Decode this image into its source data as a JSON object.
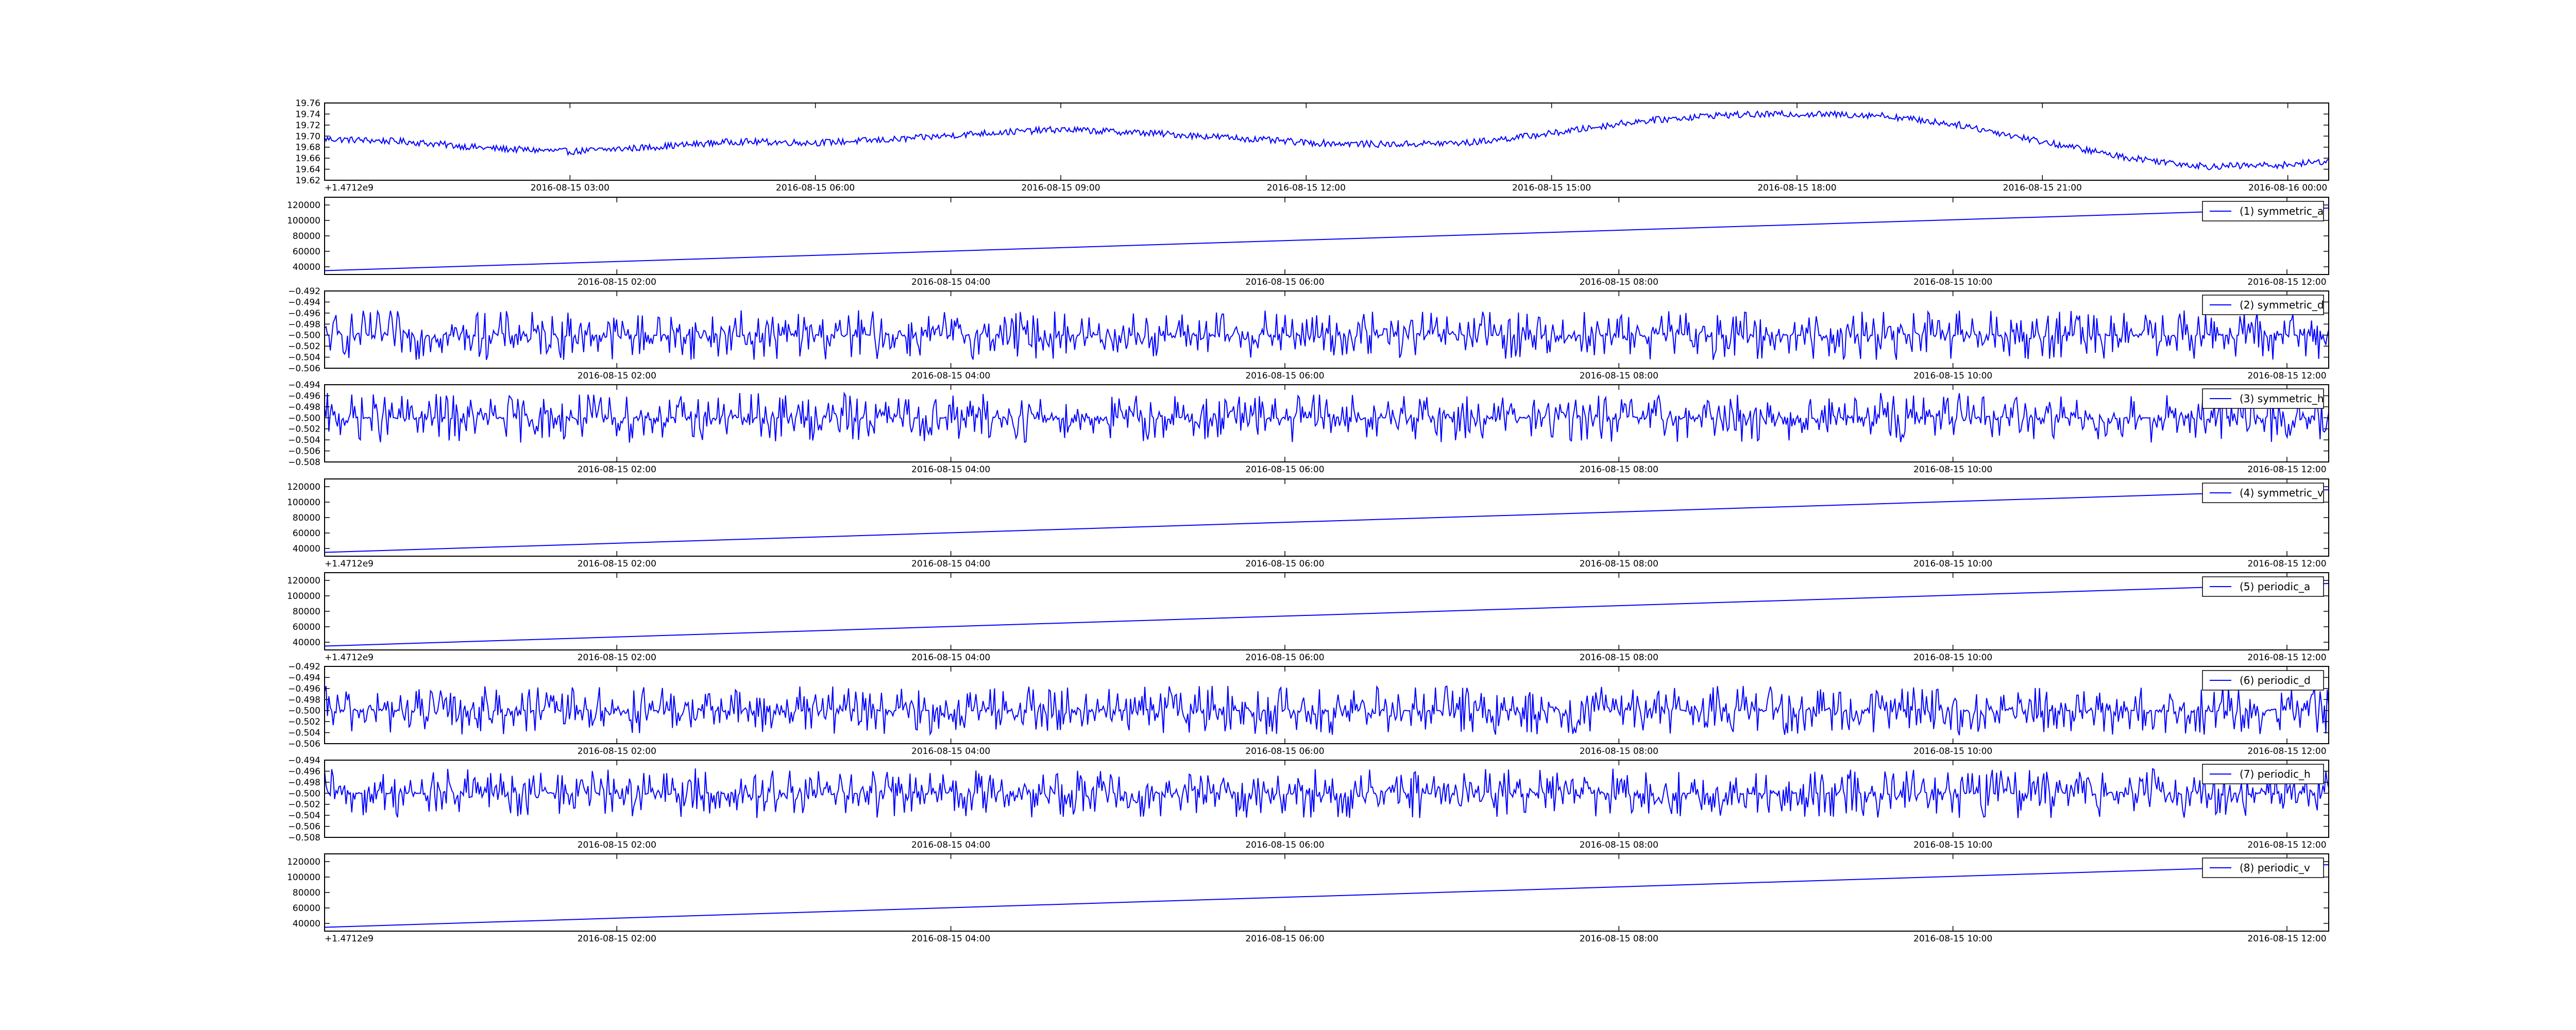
{
  "figure": {
    "background": "#ffffff",
    "line_color": "#0000ff"
  },
  "chart_data": [
    {
      "type": "line",
      "title": "",
      "offset_label": "+1.4712e9",
      "x_ticks": [
        "2016-08-15 03:00",
        "2016-08-15 06:00",
        "2016-08-15 09:00",
        "2016-08-15 12:00",
        "2016-08-15 15:00",
        "2016-08-15 18:00",
        "2016-08-15 21:00",
        "2016-08-16 00:00"
      ],
      "y_ticks": [
        "19.62",
        "19.64",
        "19.66",
        "19.68",
        "19.70",
        "19.72",
        "19.74",
        "19.76"
      ],
      "ylim": [
        19.62,
        19.76
      ],
      "grid": false,
      "series": [
        {
          "x": [
            "2016-08-15 00:00",
            "2016-08-15 01:00",
            "2016-08-15 02:00",
            "2016-08-15 03:00",
            "2016-08-15 04:00",
            "2016-08-15 05:00",
            "2016-08-15 06:00",
            "2016-08-15 07:00",
            "2016-08-15 08:00",
            "2016-08-15 09:00",
            "2016-08-15 10:00",
            "2016-08-15 11:00",
            "2016-08-15 12:00",
            "2016-08-15 13:00",
            "2016-08-15 14:00",
            "2016-08-15 15:00",
            "2016-08-15 16:00",
            "2016-08-15 17:00",
            "2016-08-15 18:00",
            "2016-08-15 19:00",
            "2016-08-15 20:00",
            "2016-08-15 21:00",
            "2016-08-15 22:00",
            "2016-08-15 23:00",
            "2016-08-16 00:00",
            "2016-08-16 00:30"
          ],
          "values": [
            19.695,
            19.69,
            19.678,
            19.672,
            19.68,
            19.69,
            19.688,
            19.694,
            19.705,
            19.712,
            19.706,
            19.698,
            19.688,
            19.685,
            19.688,
            19.705,
            19.726,
            19.738,
            19.74,
            19.738,
            19.72,
            19.69,
            19.662,
            19.645,
            19.648,
            19.655
          ],
          "noise": 0.006
        }
      ]
    },
    {
      "type": "line",
      "title": "",
      "offset_label": "",
      "legend": "(1) symmetric_a",
      "legend_position": "upper right",
      "x_ticks": [
        "2016-08-15 02:00",
        "2016-08-15 04:00",
        "2016-08-15 06:00",
        "2016-08-15 08:00",
        "2016-08-15 10:00",
        "2016-08-15 12:00"
      ],
      "y_ticks": [
        "40000",
        "60000",
        "80000",
        "100000",
        "120000"
      ],
      "ylim": [
        30000,
        130000
      ],
      "grid": false,
      "series": [
        {
          "name": "(1) symmetric_a",
          "x": [
            "2016-08-15 00:15",
            "2016-08-15 12:15"
          ],
          "values": [
            35000,
            116000
          ],
          "noise": 0
        }
      ]
    },
    {
      "type": "line",
      "title": "",
      "offset_label": "",
      "legend": "(2) symmetric_d",
      "legend_position": "upper right",
      "x_ticks": [
        "2016-08-15 02:00",
        "2016-08-15 04:00",
        "2016-08-15 06:00",
        "2016-08-15 08:00",
        "2016-08-15 10:00",
        "2016-08-15 12:00"
      ],
      "y_ticks": [
        "−0.506",
        "−0.504",
        "−0.502",
        "−0.500",
        "−0.498",
        "−0.496",
        "−0.494",
        "−0.492"
      ],
      "ylim": [
        -0.506,
        -0.492
      ],
      "grid": false,
      "series": [
        {
          "name": "(2) symmetric_d",
          "x": [
            "2016-08-15 00:15",
            "2016-08-15 12:15"
          ],
          "values": [
            -0.5,
            -0.5
          ],
          "noise": 0.0045
        }
      ]
    },
    {
      "type": "line",
      "title": "",
      "offset_label": "",
      "legend": "(3) symmetric_h",
      "legend_position": "upper right",
      "x_ticks": [
        "2016-08-15 02:00",
        "2016-08-15 04:00",
        "2016-08-15 06:00",
        "2016-08-15 08:00",
        "2016-08-15 10:00",
        "2016-08-15 12:00"
      ],
      "y_ticks": [
        "−0.508",
        "−0.506",
        "−0.504",
        "−0.502",
        "−0.500",
        "−0.498",
        "−0.496",
        "−0.494"
      ],
      "ylim": [
        -0.508,
        -0.494
      ],
      "grid": false,
      "series": [
        {
          "name": "(3) symmetric_h",
          "x": [
            "2016-08-15 00:15",
            "2016-08-15 12:15"
          ],
          "values": [
            -0.5,
            -0.5
          ],
          "noise": 0.0045
        }
      ]
    },
    {
      "type": "line",
      "title": "",
      "offset_label": "+1.4712e9",
      "legend": "(4) symmetric_v",
      "legend_position": "upper right",
      "x_ticks": [
        "2016-08-15 02:00",
        "2016-08-15 04:00",
        "2016-08-15 06:00",
        "2016-08-15 08:00",
        "2016-08-15 10:00",
        "2016-08-15 12:00"
      ],
      "y_ticks": [
        "40000",
        "60000",
        "80000",
        "100000",
        "120000"
      ],
      "ylim": [
        30000,
        130000
      ],
      "grid": false,
      "series": [
        {
          "name": "(4) symmetric_v",
          "x": [
            "2016-08-15 00:15",
            "2016-08-15 12:15"
          ],
          "values": [
            35000,
            116000
          ],
          "noise": 0
        }
      ]
    },
    {
      "type": "line",
      "title": "",
      "offset_label": "+1.4712e9",
      "legend": "(5) periodic_a",
      "legend_position": "upper right",
      "x_ticks": [
        "2016-08-15 02:00",
        "2016-08-15 04:00",
        "2016-08-15 06:00",
        "2016-08-15 08:00",
        "2016-08-15 10:00",
        "2016-08-15 12:00"
      ],
      "y_ticks": [
        "40000",
        "60000",
        "80000",
        "100000",
        "120000"
      ],
      "ylim": [
        30000,
        130000
      ],
      "grid": false,
      "series": [
        {
          "name": "(5) periodic_a",
          "x": [
            "2016-08-15 00:15",
            "2016-08-15 12:15"
          ],
          "values": [
            35000,
            116000
          ],
          "noise": 0
        }
      ]
    },
    {
      "type": "line",
      "title": "",
      "offset_label": "",
      "legend": "(6) periodic_d",
      "legend_position": "upper right",
      "x_ticks": [
        "2016-08-15 02:00",
        "2016-08-15 04:00",
        "2016-08-15 06:00",
        "2016-08-15 08:00",
        "2016-08-15 10:00",
        "2016-08-15 12:00"
      ],
      "y_ticks": [
        "−0.506",
        "−0.504",
        "−0.502",
        "−0.500",
        "−0.498",
        "−0.496",
        "−0.494",
        "−0.492"
      ],
      "ylim": [
        -0.506,
        -0.492
      ],
      "grid": false,
      "series": [
        {
          "name": "(6) periodic_d",
          "x": [
            "2016-08-15 00:15",
            "2016-08-15 12:15"
          ],
          "values": [
            -0.5,
            -0.5
          ],
          "noise": 0.0045
        }
      ]
    },
    {
      "type": "line",
      "title": "",
      "offset_label": "",
      "legend": "(7) periodic_h",
      "legend_position": "upper right",
      "x_ticks": [
        "2016-08-15 02:00",
        "2016-08-15 04:00",
        "2016-08-15 06:00",
        "2016-08-15 08:00",
        "2016-08-15 10:00",
        "2016-08-15 12:00"
      ],
      "y_ticks": [
        "−0.508",
        "−0.506",
        "−0.504",
        "−0.502",
        "−0.500",
        "−0.498",
        "−0.496",
        "−0.494"
      ],
      "ylim": [
        -0.508,
        -0.494
      ],
      "grid": false,
      "series": [
        {
          "name": "(7) periodic_h",
          "x": [
            "2016-08-15 00:15",
            "2016-08-15 12:15"
          ],
          "values": [
            -0.5,
            -0.5
          ],
          "noise": 0.0045
        }
      ]
    },
    {
      "type": "line",
      "title": "",
      "offset_label": "+1.4712e9",
      "legend": "(8) periodic_v",
      "legend_position": "upper right",
      "x_ticks": [
        "2016-08-15 02:00",
        "2016-08-15 04:00",
        "2016-08-15 06:00",
        "2016-08-15 08:00",
        "2016-08-15 10:00",
        "2016-08-15 12:00"
      ],
      "y_ticks": [
        "40000",
        "60000",
        "80000",
        "100000",
        "120000"
      ],
      "ylim": [
        30000,
        130000
      ],
      "grid": false,
      "series": [
        {
          "name": "(8) periodic_v",
          "x": [
            "2016-08-15 00:15",
            "2016-08-15 12:15"
          ],
          "values": [
            35000,
            116000
          ],
          "noise": 0
        }
      ]
    }
  ]
}
